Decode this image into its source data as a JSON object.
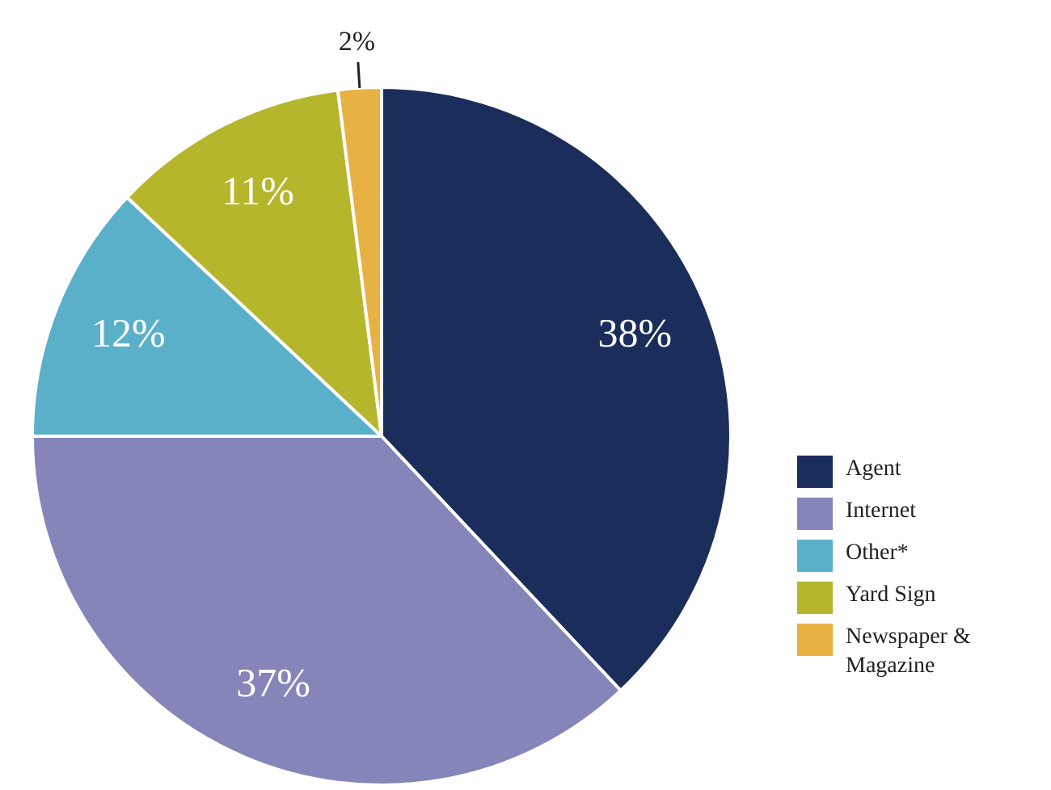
{
  "chart_data": {
    "type": "pie",
    "categories": [
      "Agent",
      "Internet",
      "Other*",
      "Yard Sign",
      "Newspaper & Magazine"
    ],
    "values": [
      38,
      37,
      12,
      11,
      2
    ],
    "colors": [
      "#1b2d5a",
      "#8585b9",
      "#5bb0c9",
      "#b5b62c",
      "#e7b143"
    ],
    "value_labels": [
      "38%",
      "37%",
      "12%",
      "11%",
      "2%"
    ],
    "legend": "bottom right"
  }
}
